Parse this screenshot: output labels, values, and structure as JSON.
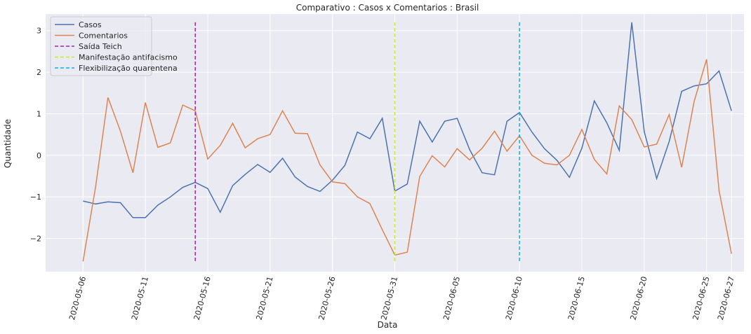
{
  "chart_data": {
    "type": "line",
    "title": "Comparativo : Casos x Comentarios : Brasil",
    "xlabel": "Data",
    "ylabel": "Quantidade",
    "x_start": "2020-05-06",
    "xlim": [
      "2020-05-03",
      "2020-06-28"
    ],
    "ylim": [
      -2.8,
      3.4
    ],
    "x_ticks": [
      "2020-05-06",
      "2020-05-11",
      "2020-05-16",
      "2020-05-21",
      "2020-05-26",
      "2020-05-31",
      "2020-06-05",
      "2020-06-10",
      "2020-06-15",
      "2020-06-20",
      "2020-06-25",
      "2020-06-27"
    ],
    "y_ticks": [
      -2,
      -1,
      0,
      1,
      2,
      3
    ],
    "y_tick_labels": [
      "−2",
      "−1",
      "0",
      "1",
      "2",
      "3"
    ],
    "grid": true,
    "legend_position": "top-left",
    "series": [
      {
        "name": "Casos",
        "color": "#4c72b0",
        "values": [
          -1.1,
          -1.17,
          -1.12,
          -1.14,
          -1.5,
          -1.5,
          -1.2,
          -1.0,
          -0.77,
          -0.65,
          -0.8,
          -1.37,
          -0.73,
          -0.46,
          -0.22,
          -0.41,
          -0.07,
          -0.52,
          -0.75,
          -0.87,
          -0.6,
          -0.24,
          0.56,
          0.4,
          0.89,
          -0.86,
          -0.69,
          0.82,
          0.32,
          0.82,
          0.89,
          0.14,
          -0.42,
          -0.47,
          0.82,
          1.03,
          0.56,
          0.16,
          -0.12,
          -0.53,
          0.17,
          1.31,
          0.78,
          0.12,
          3.2,
          0.57,
          -0.56,
          0.33,
          1.54,
          1.67,
          1.72,
          2.03,
          1.07
        ]
      },
      {
        "name": "Comentarios",
        "color": "#dd8452",
        "values": [
          -2.55,
          -0.77,
          1.39,
          0.58,
          -0.42,
          1.27,
          0.19,
          0.3,
          1.21,
          1.07,
          -0.09,
          0.24,
          0.77,
          0.18,
          0.4,
          0.5,
          1.07,
          0.53,
          0.52,
          -0.23,
          -0.64,
          -0.68,
          -1.0,
          -1.16,
          -1.79,
          -2.4,
          -2.33,
          -0.51,
          -0.01,
          -0.28,
          0.16,
          -0.11,
          0.17,
          0.58,
          0.1,
          0.47,
          0.0,
          -0.19,
          -0.23,
          0.0,
          0.62,
          -0.1,
          -0.45,
          1.19,
          0.86,
          0.2,
          0.27,
          0.98,
          -0.29,
          1.29,
          2.31,
          -0.85,
          -2.37
        ]
      }
    ],
    "vlines": [
      {
        "name": "Saída Teich",
        "date": "2020-05-15",
        "color": "#9c27b0"
      },
      {
        "name": "Manifestação antifacismo",
        "date": "2020-05-31",
        "color": "#c6e640"
      },
      {
        "name": "Flexibilização quarentena",
        "date": "2020-06-10",
        "color": "#1ea7e1"
      }
    ],
    "vline_range": [
      -2.55,
      3.2
    ]
  }
}
